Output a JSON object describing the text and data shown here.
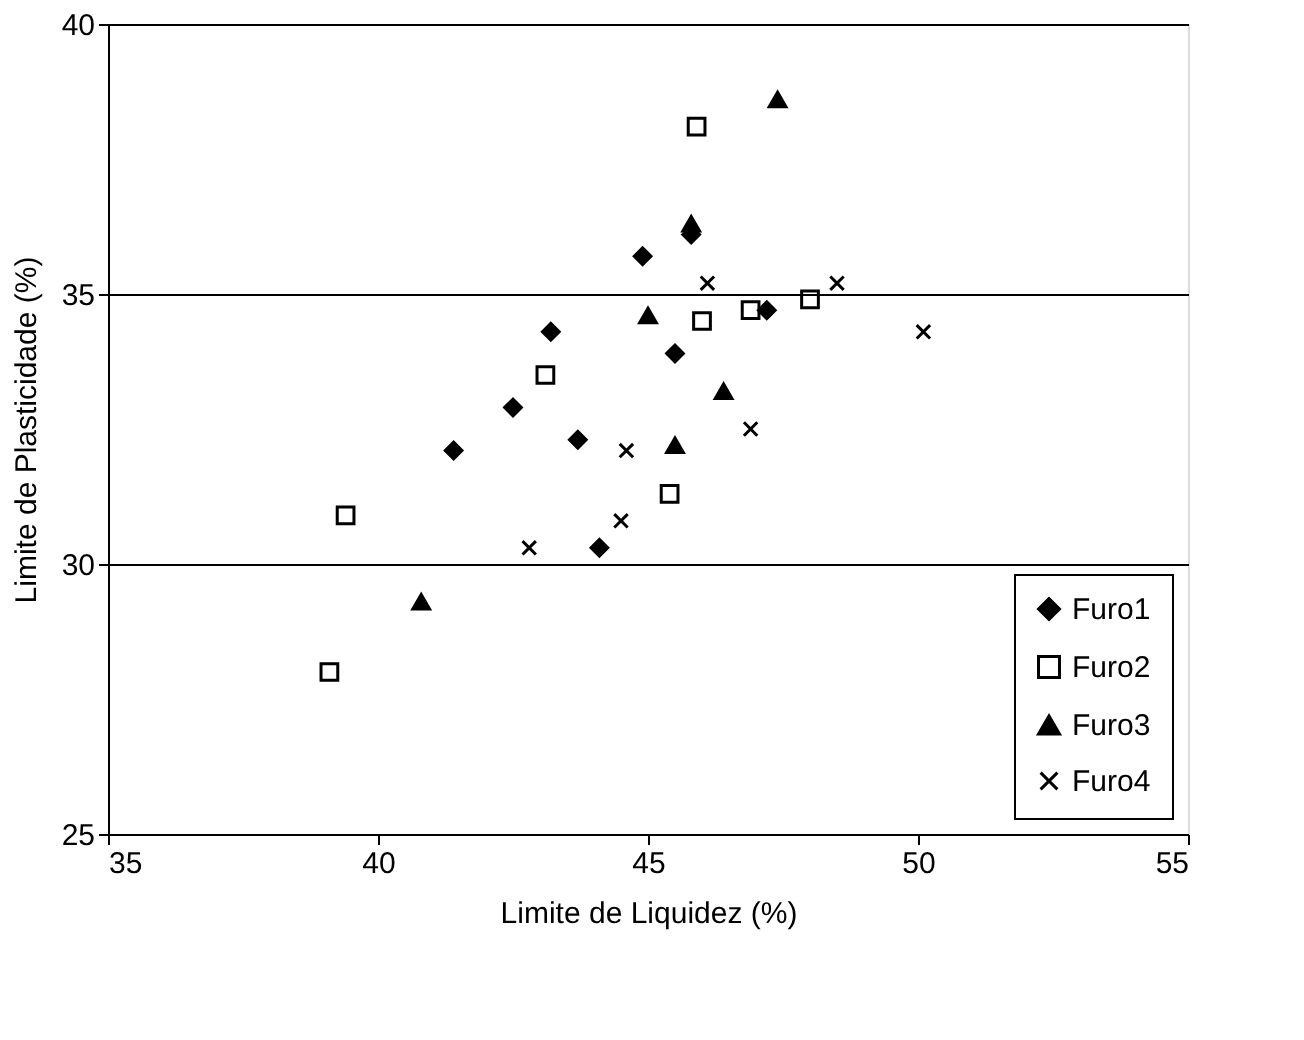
{
  "chart_data": {
    "type": "scatter",
    "xlabel": "Limite de Liquidez (%)",
    "ylabel": "Limite de Plasticidade (%)",
    "xlim": [
      35,
      55
    ],
    "xticks": [
      35,
      40,
      45,
      50,
      55
    ],
    "ylim": [
      25,
      40
    ],
    "yticks": [
      25,
      30,
      35,
      40
    ],
    "grid": "y",
    "legend": "bottom right",
    "series": [
      {
        "name": "Furo1",
        "color": "#000000",
        "marker": "diamond",
        "x": [
          41.4,
          42.5,
          43.2,
          43.7,
          44.9,
          45.8,
          45.5,
          44.1,
          47.2
        ],
        "values": [
          32.1,
          32.9,
          34.3,
          32.3,
          35.7,
          36.1,
          33.9,
          30.3,
          34.7
        ]
      },
      {
        "name": "Furo2",
        "color": "#000000",
        "marker": "square",
        "x": [
          39.4,
          39.1,
          43.1,
          45.4,
          45.9,
          46.0,
          46.9,
          48.0
        ],
        "values": [
          30.9,
          28.0,
          33.5,
          31.3,
          38.1,
          34.5,
          34.7,
          34.9
        ]
      },
      {
        "name": "Furo3",
        "color": "#000000",
        "marker": "triangle",
        "x": [
          40.8,
          45.0,
          45.5,
          46.4,
          47.4,
          45.8
        ],
        "values": [
          29.3,
          34.6,
          32.2,
          33.2,
          38.6,
          36.3
        ]
      },
      {
        "name": "Furo4",
        "color": "#000000",
        "marker": "cross",
        "x": [
          42.8,
          44.6,
          44.5,
          46.1,
          46.9,
          48.5,
          50.1
        ],
        "values": [
          30.3,
          32.1,
          30.8,
          35.2,
          32.5,
          35.2,
          34.3
        ]
      }
    ]
  }
}
